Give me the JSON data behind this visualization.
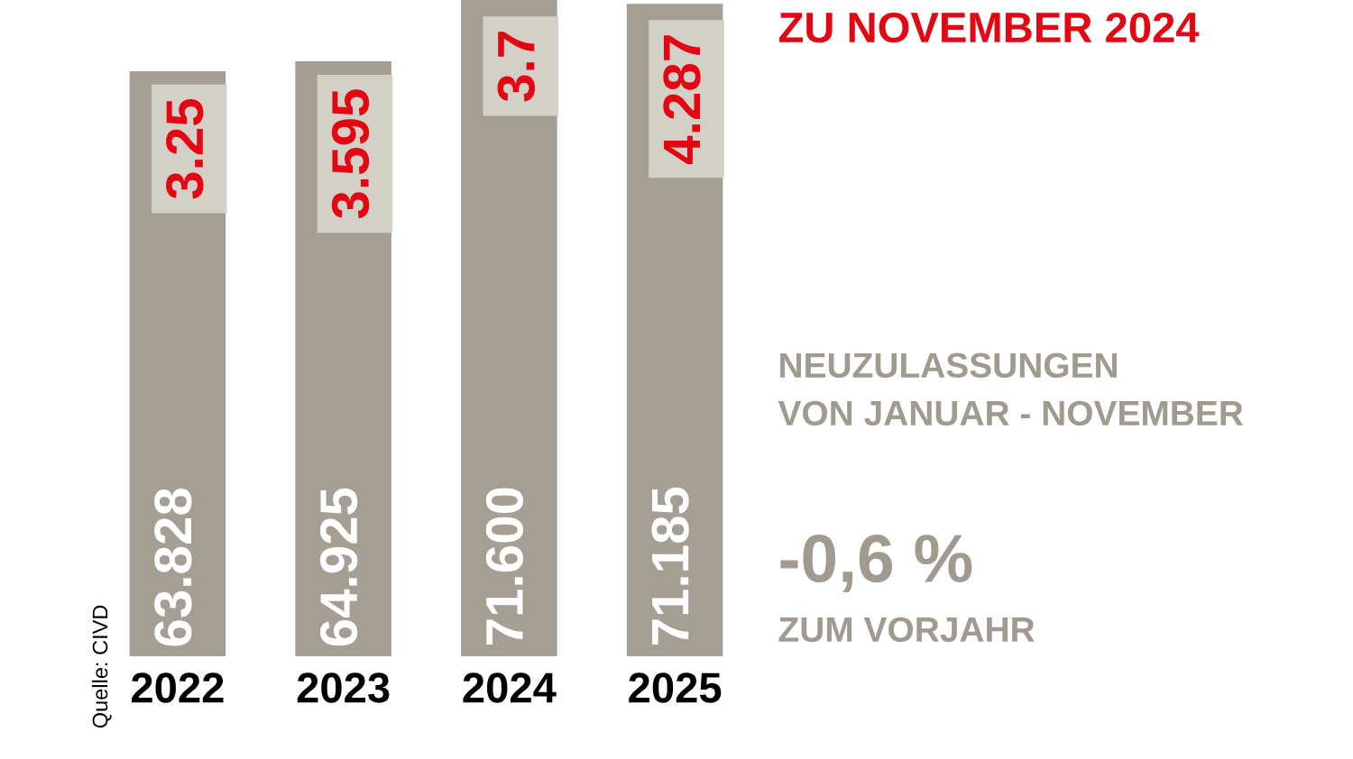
{
  "chart_data": {
    "type": "bar",
    "title": "ZU NOVEMBER 2024",
    "categories": [
      "2022",
      "2023",
      "2024",
      "2025"
    ],
    "values": [
      63.828,
      64.925,
      71.6,
      71.185
    ],
    "value_labels": [
      "63.828",
      "64.925",
      "71.600",
      "71.185"
    ],
    "color": "#a59e92",
    "annotations": [
      "3.25",
      "3.595",
      "3.7",
      "4.287",
      "NEUZULASSUNGEN\nVON JANUAR - NOVEMBER",
      "-0,6 %",
      "ZUM VORJAHR",
      "Quelle: CIVD"
    ],
    "grid": false,
    "legend": false
  }
}
